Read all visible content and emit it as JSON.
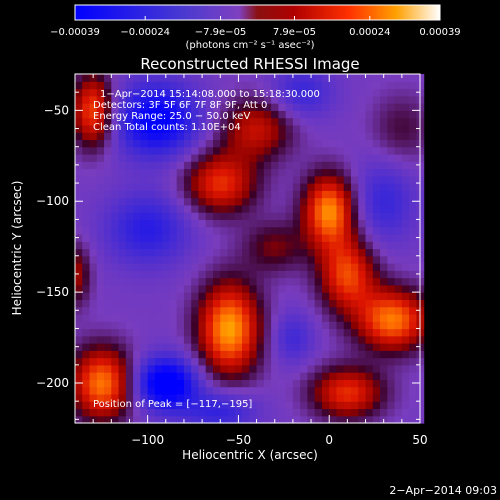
{
  "chart_data": {
    "type": "heatmap",
    "title": "Reconstructed RHESSI Image",
    "xlabel": "Heliocentric X (arcsec)",
    "ylabel": "Heliocentric Y (arcsec)",
    "xlim": [
      -140,
      50
    ],
    "ylim": [
      -222,
      -30
    ],
    "x_ticks": [
      -100,
      -50,
      0,
      50
    ],
    "x_tick_labels": [
      "−100",
      "−50",
      "0",
      "50"
    ],
    "y_ticks": [
      -50,
      -100,
      -150,
      -200
    ],
    "y_tick_labels": [
      "−50",
      "−100",
      "−150",
      "−200"
    ],
    "colorbar": {
      "min": -0.00039,
      "max": 0.00039,
      "ticks": [
        -0.00039,
        -0.00024,
        -7.9e-05,
        7.9e-05,
        0.00024,
        0.00039
      ],
      "tick_labels": [
        "−0.00039",
        "−0.00024",
        "−7.9e−05",
        "7.9e−05",
        "0.00024",
        "0.00039"
      ],
      "units_label": "(photons cm⁻² s⁻¹ asec⁻²)"
    },
    "annotations": [
      "1−Apr−2014 15:14:08.000 to 15:18:30.000",
      "Detectors: 3F 5F 6F 7F 8F 9F, Att 0",
      "Energy Range: 25.0 − 50.0 keV",
      "Clean    Total counts: 1.10E+04",
      "Position of Peak = [−117,−195]"
    ],
    "peak": {
      "x": -117,
      "y": -195
    },
    "sources": [
      {
        "x": -55,
        "y": -170,
        "amp": 1.0,
        "sx": 12,
        "sy": 18
      },
      {
        "x": 0,
        "y": -105,
        "amp": 0.95,
        "sx": 10,
        "sy": 14
      },
      {
        "x": 10,
        "y": -140,
        "amp": 0.75,
        "sx": 11,
        "sy": 14
      },
      {
        "x": 35,
        "y": -165,
        "amp": 0.9,
        "sx": 14,
        "sy": 12
      },
      {
        "x": -125,
        "y": -200,
        "amp": 0.9,
        "sx": 12,
        "sy": 14
      },
      {
        "x": -60,
        "y": -90,
        "amp": 0.7,
        "sx": 14,
        "sy": 12
      },
      {
        "x": -40,
        "y": -60,
        "amp": 0.55,
        "sx": 14,
        "sy": 12
      },
      {
        "x": -130,
        "y": -50,
        "amp": 0.8,
        "sx": 8,
        "sy": 14
      },
      {
        "x": -30,
        "y": -125,
        "amp": 0.35,
        "sx": 12,
        "sy": 10
      },
      {
        "x": 40,
        "y": -60,
        "amp": 0.25,
        "sx": 12,
        "sy": 14
      },
      {
        "x": 10,
        "y": -205,
        "amp": 0.7,
        "sx": 14,
        "sy": 10
      },
      {
        "x": -140,
        "y": -140,
        "amp": 0.45,
        "sx": 6,
        "sy": 12
      },
      {
        "x": -95,
        "y": -55,
        "amp": -0.75,
        "sx": 16,
        "sy": 14
      },
      {
        "x": -90,
        "y": -200,
        "amp": -0.9,
        "sx": 12,
        "sy": 10
      },
      {
        "x": -100,
        "y": -115,
        "amp": -0.45,
        "sx": 16,
        "sy": 14
      },
      {
        "x": 30,
        "y": -100,
        "amp": -0.35,
        "sx": 12,
        "sy": 16
      },
      {
        "x": -60,
        "y": -215,
        "amp": -0.4,
        "sx": 14,
        "sy": 8
      },
      {
        "x": -20,
        "y": -175,
        "amp": -0.3,
        "sx": 8,
        "sy": 10
      },
      {
        "x": -15,
        "y": -40,
        "amp": -0.35,
        "sx": 12,
        "sy": 10
      }
    ],
    "baseline": -0.28,
    "grid": false
  },
  "footer": {
    "timestamp": "2−Apr−2014 09:03"
  }
}
